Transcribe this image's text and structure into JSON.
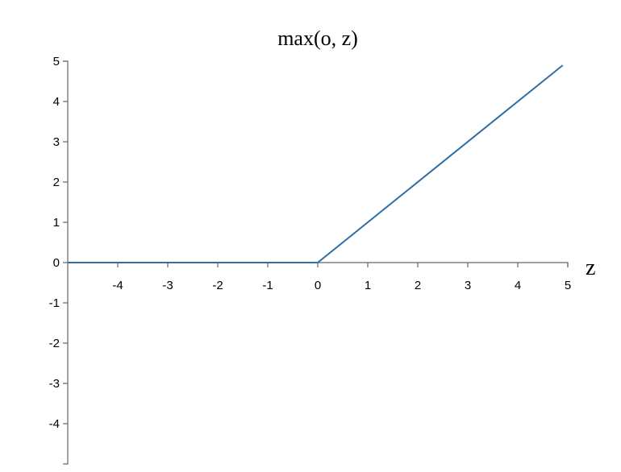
{
  "chart_data": {
    "type": "line",
    "title": "max(o, z)",
    "xlabel": "z",
    "ylabel": "",
    "xlim": [
      -5,
      5
    ],
    "ylim": [
      -5,
      5
    ],
    "x_ticks": [
      {
        "value": -4,
        "label": "-4"
      },
      {
        "value": -3,
        "label": "-3"
      },
      {
        "value": -2,
        "label": "-2"
      },
      {
        "value": -1,
        "label": "-1"
      },
      {
        "value": 0,
        "label": "0"
      },
      {
        "value": 1,
        "label": "1"
      },
      {
        "value": 2,
        "label": "2"
      },
      {
        "value": 3,
        "label": "3"
      },
      {
        "value": 4,
        "label": "4"
      },
      {
        "value": 5,
        "label": "5"
      }
    ],
    "y_ticks": [
      {
        "value": 5,
        "label": "5"
      },
      {
        "value": 4,
        "label": "4"
      },
      {
        "value": 3,
        "label": "3"
      },
      {
        "value": 2,
        "label": "2"
      },
      {
        "value": 1,
        "label": "1"
      },
      {
        "value": 0,
        "label": "0"
      },
      {
        "value": -1,
        "label": "-1"
      },
      {
        "value": -2,
        "label": "-2"
      },
      {
        "value": -3,
        "label": "-3"
      },
      {
        "value": -4,
        "label": "-4"
      }
    ],
    "series": [
      {
        "color": "#2e6fa7",
        "x": [
          -5,
          0,
          4.9
        ],
        "y": [
          0,
          0,
          4.9
        ]
      }
    ],
    "grid": false,
    "legend": "none"
  }
}
